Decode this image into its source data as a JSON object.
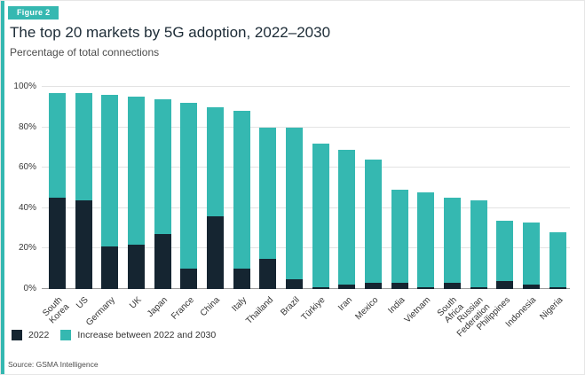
{
  "figure_badge": "Figure 2",
  "title": "The top 20 markets by 5G adoption, 2022–2030",
  "subtitle": "Percentage of total connections",
  "source": "Source: GSMA Intelligence",
  "colors": {
    "teal": "#35b8b1",
    "navy": "#152531",
    "grid": "#e3e3e3",
    "baseline": "#9b9b9b"
  },
  "chart_data": {
    "type": "bar",
    "stacked": true,
    "title": "The top 20 markets by 5G adoption, 2022–2030",
    "subtitle": "Percentage of total connections",
    "ylabel": "Percentage of total connections",
    "ylim": [
      0,
      100
    ],
    "yticks": [
      0,
      20,
      40,
      60,
      80,
      100
    ],
    "ytick_labels": [
      "0%",
      "20%",
      "40%",
      "60%",
      "80%",
      "100%"
    ],
    "grid": true,
    "legend_position": "bottom",
    "categories": [
      "South\nKorea",
      "US",
      "Germany",
      "UK",
      "Japan",
      "France",
      "China",
      "Italy",
      "Thailand",
      "Brazil",
      "Türkiye",
      "Iran",
      "Mexico",
      "India",
      "Vietnam",
      "South\nAfrica",
      "Russian\nFederation",
      "Philippines",
      "Indonesia",
      "Nigeria"
    ],
    "series": [
      {
        "name": "2022",
        "color": "#152531",
        "values": [
          45,
          44,
          21,
          22,
          27,
          10,
          36,
          10,
          15,
          5,
          1,
          2,
          3,
          3,
          1,
          3,
          1,
          4,
          2,
          1
        ]
      },
      {
        "name": "Increase between 2022 and 2030",
        "color": "#35b8b1",
        "values": [
          52,
          53,
          75,
          73,
          67,
          82,
          54,
          78,
          65,
          75,
          71,
          67,
          61,
          46,
          47,
          42,
          43,
          30,
          31,
          27
        ]
      }
    ],
    "totals_2030": [
      97,
      97,
      96,
      95,
      94,
      92,
      90,
      88,
      80,
      80,
      72,
      69,
      64,
      49,
      48,
      45,
      44,
      34,
      33,
      28
    ]
  }
}
